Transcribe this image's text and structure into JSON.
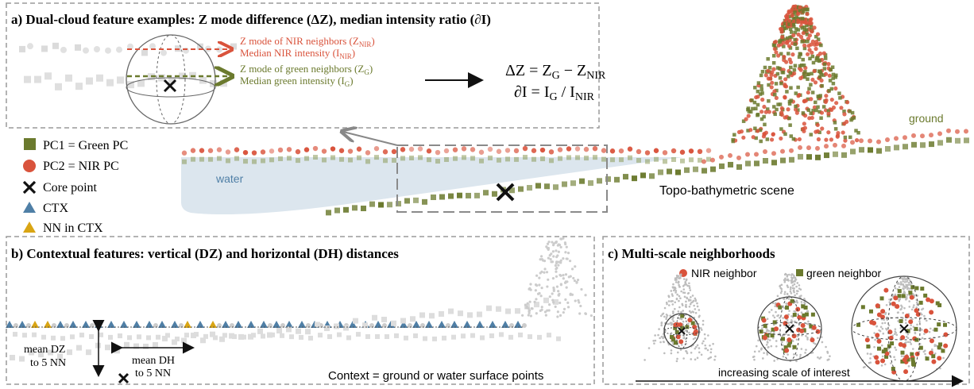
{
  "panel_a": {
    "title": "a) Dual-cloud feature examples: Z mode difference (ΔZ), median intensity ratio (∂I)",
    "nir_mode_label": "Z mode of NIR neighbors (Z",
    "nir_mode_sub": "NIR",
    "nir_int_label": "Median NIR intensity (I",
    "nir_int_sub": "NIR",
    "green_mode_label": "Z mode of green neighbors (Z",
    "green_mode_sub": "G",
    "green_int_label": "Median green intensity (I",
    "green_int_sub": "G",
    "eq1_lhs": "ΔZ = Z",
    "eq1_sub1": "G",
    "eq1_mid": " − Z",
    "eq1_sub2": "NIR",
    "eq2_lhs": "∂I = I",
    "eq2_sub1": "G",
    "eq2_mid": " / I",
    "eq2_sub2": "NIR"
  },
  "legend": {
    "items": [
      {
        "label": "PC1 = Green PC",
        "color": "#6b7a2e",
        "icon": "green-square-icon"
      },
      {
        "label": "PC2 = NIR PC",
        "color": "#d9533c",
        "icon": "red-circle-icon"
      },
      {
        "label": "Core point",
        "color": "#111111",
        "icon": "x-mark-icon"
      },
      {
        "label": "CTX",
        "color": "#4f7fa6",
        "icon": "blue-triangle-icon"
      },
      {
        "label": "NN in CTX",
        "color": "#d9a514",
        "icon": "yellow-triangle-icon"
      }
    ]
  },
  "scene": {
    "water_label": "water",
    "ground_label": "ground",
    "scene_label": "Topo-bathymetric scene"
  },
  "panel_b": {
    "title": "b) Contextual features: vertical (DZ) and horizontal (DH) distances",
    "dz_line1": "mean DZ",
    "dz_line2": "to 5 NN",
    "dh_line1": "mean DH",
    "dh_line2": "to 5 NN",
    "context_note": "Context = ground or water surface points"
  },
  "panel_c": {
    "title": "c) Multi-scale neighborhoods",
    "nir_neighbor": "NIR neighbor",
    "green_neighbor": "green neighbor",
    "scale_label": "increasing scale of interest"
  },
  "colors": {
    "green": "#6b7a2e",
    "red": "#d9533c",
    "blue": "#4f7fa6",
    "yellow": "#d9a514",
    "water": "#dce6ee",
    "panel_border": "#9a9a9a"
  }
}
